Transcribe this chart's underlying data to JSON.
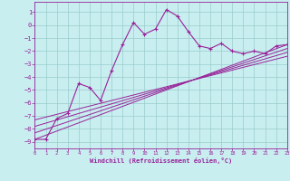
{
  "bg_color": "#c8eef0",
  "grid_color": "#99cccc",
  "line_color": "#992299",
  "xlim": [
    0,
    23
  ],
  "ylim": [
    -9.5,
    1.8
  ],
  "xticks": [
    0,
    1,
    2,
    3,
    4,
    5,
    6,
    7,
    8,
    9,
    10,
    11,
    12,
    13,
    14,
    15,
    16,
    17,
    18,
    19,
    20,
    21,
    22,
    23
  ],
  "yticks": [
    1,
    0,
    -1,
    -2,
    -3,
    -4,
    -5,
    -6,
    -7,
    -8,
    -9
  ],
  "main_x": [
    0,
    1,
    2,
    3,
    4,
    5,
    6,
    7,
    8,
    9,
    10,
    11,
    12,
    13,
    14,
    15,
    16,
    17,
    18,
    19,
    20,
    21,
    22,
    23
  ],
  "main_y": [
    -8.8,
    -8.8,
    -7.2,
    -6.8,
    -4.5,
    -4.8,
    -5.8,
    -3.5,
    -1.5,
    0.2,
    -0.7,
    -0.3,
    1.2,
    0.7,
    -0.5,
    -1.6,
    -1.8,
    -1.4,
    -2.0,
    -2.2,
    -2.0,
    -2.2,
    -1.6,
    -1.5
  ],
  "trend_lines": [
    {
      "x": [
        0,
        23
      ],
      "y": [
        -8.8,
        -1.5
      ]
    },
    {
      "x": [
        0,
        23
      ],
      "y": [
        -8.3,
        -1.8
      ]
    },
    {
      "x": [
        0,
        23
      ],
      "y": [
        -7.8,
        -2.1
      ]
    },
    {
      "x": [
        0,
        23
      ],
      "y": [
        -7.3,
        -2.4
      ]
    }
  ],
  "xlabel": "Windchill (Refroidissement éolien,°C)"
}
